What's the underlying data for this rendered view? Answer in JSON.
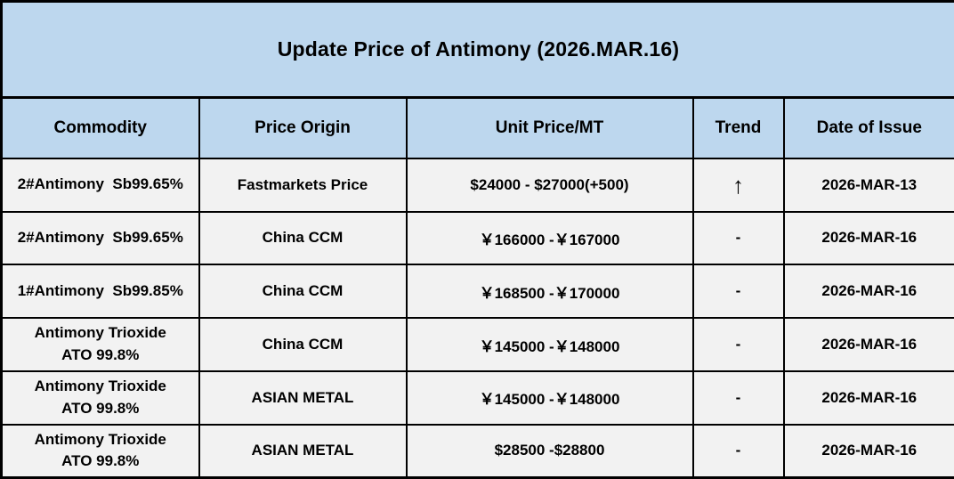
{
  "title": "Update Price of Antimony (2026.MAR.16)",
  "colors": {
    "banner_bg": "#BDD7EE",
    "header_bg": "#BDD7EE",
    "row_bg": "#F2F2F2",
    "border": "#000000",
    "text": "#000000"
  },
  "table": {
    "columns": {
      "commodity": "Commodity",
      "origin": "Price Origin",
      "price": "Unit Price/MT",
      "trend": "Trend",
      "date": "Date of Issue"
    },
    "rows": [
      {
        "commodity": "2#Antimony  Sb99.65%",
        "origin": "Fastmarkets Price",
        "price": "$24000 - $27000(+500)",
        "trend": "↑",
        "trend_icon": "up-arrow-icon",
        "date": "2026-MAR-13"
      },
      {
        "commodity": "2#Antimony  Sb99.65%",
        "origin": "China CCM",
        "price": "￥166000 -￥167000",
        "trend": "-",
        "trend_icon": "dash-icon",
        "date": "2026-MAR-16"
      },
      {
        "commodity": "1#Antimony  Sb99.85%",
        "origin": "China CCM",
        "price": "￥168500 -￥170000",
        "trend": "-",
        "trend_icon": "dash-icon",
        "date": "2026-MAR-16"
      },
      {
        "commodity": "Antimony Trioxide\nATO 99.8%",
        "origin": "China CCM",
        "price": "￥145000 -￥148000",
        "trend": "-",
        "trend_icon": "dash-icon",
        "date": "2026-MAR-16"
      },
      {
        "commodity": "Antimony Trioxide\nATO 99.8%",
        "origin": "ASIAN METAL",
        "price": "￥145000 -￥148000",
        "trend": "-",
        "trend_icon": "dash-icon",
        "date": "2026-MAR-16"
      },
      {
        "commodity": "Antimony Trioxide\nATO 99.8%",
        "origin": "ASIAN METAL",
        "price": "$28500 -$28800",
        "trend": "-",
        "trend_icon": "dash-icon",
        "date": "2026-MAR-16"
      }
    ]
  }
}
